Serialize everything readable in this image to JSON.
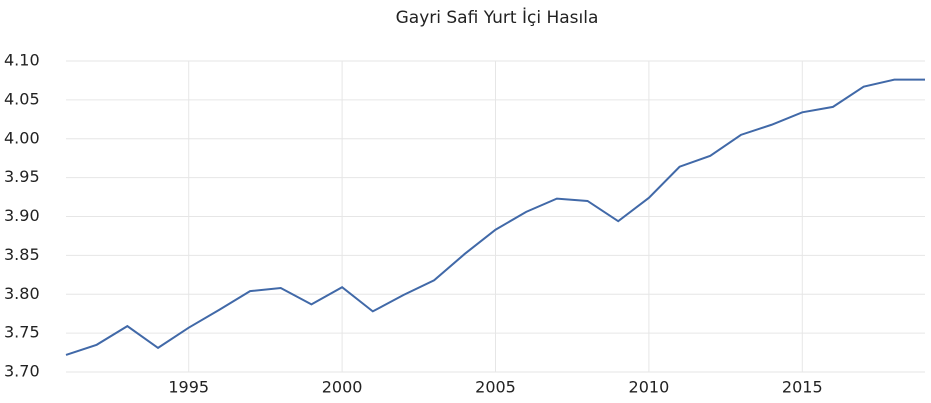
{
  "chart_data": {
    "type": "line",
    "title": "Gayri Safi Yurt İçi Hasıla",
    "x": [
      1991,
      1992,
      1993,
      1994,
      1995,
      1996,
      1997,
      1998,
      1999,
      2000,
      2001,
      2002,
      2003,
      2004,
      2005,
      2006,
      2007,
      2008,
      2009,
      2010,
      2011,
      2012,
      2013,
      2014,
      2015,
      2016,
      2017,
      2018,
      2019
    ],
    "series": [
      {
        "name": "Gayri Safi Yurt İçi Hasıla",
        "color": "#4169a8",
        "values": [
          3.722,
          3.735,
          3.759,
          3.731,
          3.757,
          3.78,
          3.804,
          3.808,
          3.787,
          3.809,
          3.778,
          3.799,
          3.818,
          3.852,
          3.883,
          3.906,
          3.923,
          3.92,
          3.894,
          3.924,
          3.964,
          3.978,
          4.005,
          4.018,
          4.034,
          4.041,
          4.067,
          4.076,
          4.076
        ]
      }
    ],
    "xlim": [
      1991,
      2019
    ],
    "xticks": [
      1995,
      2000,
      2005,
      2010,
      2015
    ],
    "ylim": [
      3.7,
      4.1
    ],
    "yticks": [
      {
        "value": 3.7,
        "label": "3.70"
      },
      {
        "value": 3.75,
        "label": "3.75"
      },
      {
        "value": 3.8,
        "label": "3.80"
      },
      {
        "value": 3.85,
        "label": "3.85"
      },
      {
        "value": 3.9,
        "label": "3.90"
      },
      {
        "value": 3.95,
        "label": "3.95"
      },
      {
        "value": 4.0,
        "label": "4.00"
      },
      {
        "value": 4.05,
        "label": "4.05"
      },
      {
        "value": 4.1,
        "label": "4.10"
      }
    ],
    "grid": true
  }
}
